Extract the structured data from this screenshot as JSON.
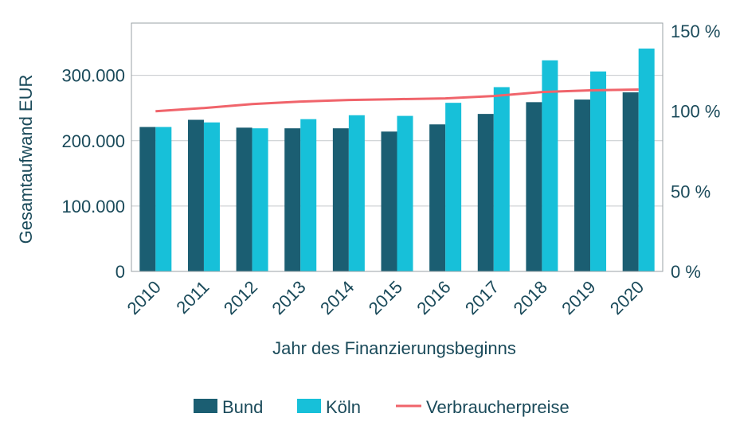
{
  "chart_data": {
    "type": "bar",
    "title": "",
    "xlabel": "Jahr des Finanzierungsbeginns",
    "ylabel": "Gesamtaufwand EUR",
    "categories": [
      "2010",
      "2011",
      "2012",
      "2013",
      "2014",
      "2015",
      "2016",
      "2017",
      "2018",
      "2019",
      "2020"
    ],
    "series": [
      {
        "name": "Bund",
        "type": "bar",
        "axis": "left",
        "color": "#1b5e72",
        "values": [
          221000,
          232000,
          220000,
          219000,
          219000,
          214000,
          225000,
          241000,
          259000,
          263000,
          274000
        ]
      },
      {
        "name": "Köln",
        "type": "bar",
        "axis": "left",
        "color": "#17c0d9",
        "values": [
          221000,
          228000,
          219000,
          233000,
          239000,
          238000,
          258000,
          282000,
          323000,
          306000,
          341000
        ]
      },
      {
        "name": "Verbraucherpreise",
        "type": "line",
        "axis": "right",
        "color": "#f0646b",
        "values": [
          100,
          102,
          104.5,
          106,
          107,
          107.5,
          108,
          109.5,
          112,
          113,
          113.5
        ]
      }
    ],
    "ylim": [
      0,
      380000
    ],
    "y_ticks": [
      0,
      100000,
      200000,
      300000
    ],
    "y_tick_labels": [
      "0",
      "100.000",
      "200.000",
      "300.000"
    ],
    "y2lim": [
      0,
      155
    ],
    "y2_ticks": [
      0,
      50,
      100,
      150
    ],
    "y2_tick_labels": [
      "0 %",
      "50 %",
      "100 %",
      "150 %"
    ],
    "grid": "horizontal",
    "legend": "bottom"
  }
}
